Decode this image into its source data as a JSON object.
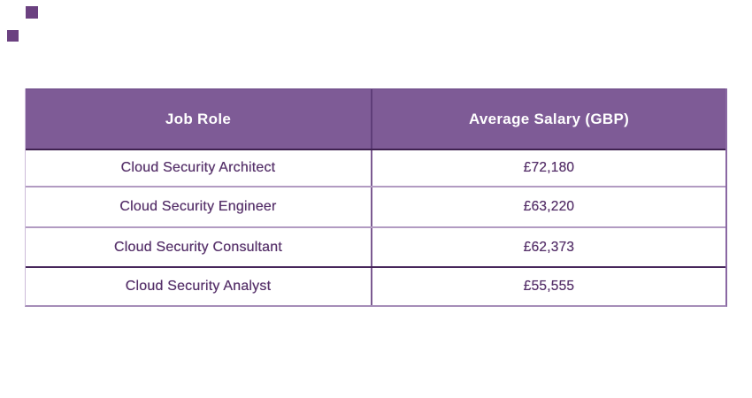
{
  "page": {
    "background": "#FFFFFF"
  },
  "decor": {
    "square_color": "#6B4180",
    "squares": [
      "decorative-square-top",
      "decorative-square-left"
    ]
  },
  "table": {
    "columns": [
      "Job Role",
      "Average Salary (GBP)"
    ],
    "rows": [
      {
        "role": "Cloud Security Architect",
        "salary": "£72,180"
      },
      {
        "role": "Cloud Security Engineer",
        "salary": "£63,220"
      },
      {
        "role": "Cloud Security Consultant",
        "salary": "£62,373"
      },
      {
        "role": "Cloud Security Analyst",
        "salary": "£55,555"
      }
    ],
    "colors": {
      "header_bg": "#7E5B96",
      "header_text": "#FFFFFF",
      "body_text": "#56316A",
      "divider": "#7B5A91",
      "border_dark": "#3F2150",
      "border_light": "#B29BC2",
      "border_bottom": "#A58DB8"
    }
  },
  "chart_data": {
    "type": "table",
    "title": "",
    "columns": [
      "Job Role",
      "Average Salary (GBP)"
    ],
    "rows": [
      [
        "Cloud Security Architect",
        "£72,180"
      ],
      [
        "Cloud Security Engineer",
        "£63,220"
      ],
      [
        "Cloud Security Consultant",
        "£62,373"
      ],
      [
        "Cloud Security Analyst",
        "£55,555"
      ]
    ],
    "categories": [
      "Cloud Security Architect",
      "Cloud Security Engineer",
      "Cloud Security Consultant",
      "Cloud Security Analyst"
    ],
    "values": [
      72180,
      63220,
      62373,
      55555
    ],
    "currency": "GBP"
  }
}
